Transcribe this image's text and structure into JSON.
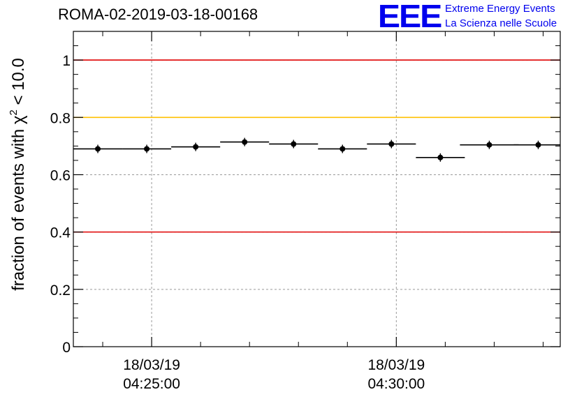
{
  "chart_data": {
    "type": "scatter",
    "title": "ROMA-02-2019-03-18-00168",
    "ylabel_main": "fraction of events with ",
    "ylabel_symbol": "χ",
    "ylabel_sup": "2",
    "ylabel_tail": " < 10.0",
    "xlabel": "",
    "ylim": [
      0,
      1.1
    ],
    "yticks": [
      {
        "value": 0,
        "label": "0"
      },
      {
        "value": 0.2,
        "label": "0.2"
      },
      {
        "value": 0.4,
        "label": "0.4"
      },
      {
        "value": 0.6,
        "label": "0.6"
      },
      {
        "value": 0.8,
        "label": "0.8"
      },
      {
        "value": 1.0,
        "label": "1"
      }
    ],
    "xlim_minutes": [
      3.4,
      13.35
    ],
    "xticks": [
      {
        "minute": 5,
        "date": "18/03/19",
        "time": "04:25:00"
      },
      {
        "minute": 10,
        "date": "18/03/19",
        "time": "04:30:00"
      }
    ],
    "x_minor_ticks_minutes": [
      4,
      6,
      7,
      8,
      9,
      11,
      12,
      13
    ],
    "reference_lines": [
      {
        "value": 1.0,
        "color": "#e00000",
        "name": "upper-limit-line"
      },
      {
        "value": 0.8,
        "color": "#ffc000",
        "name": "warning-line"
      },
      {
        "value": 0.4,
        "color": "#e00000",
        "name": "lower-limit-line"
      }
    ],
    "points": [
      {
        "x": 3.9,
        "xerr": 0.5,
        "y": 0.69
      },
      {
        "x": 4.9,
        "xerr": 0.5,
        "y": 0.69
      },
      {
        "x": 5.9,
        "xerr": 0.5,
        "y": 0.697
      },
      {
        "x": 6.9,
        "xerr": 0.5,
        "y": 0.714
      },
      {
        "x": 7.9,
        "xerr": 0.5,
        "y": 0.707
      },
      {
        "x": 8.9,
        "xerr": 0.5,
        "y": 0.69
      },
      {
        "x": 9.9,
        "xerr": 0.5,
        "y": 0.707
      },
      {
        "x": 10.9,
        "xerr": 0.5,
        "y": 0.66
      },
      {
        "x": 11.9,
        "xerr": 0.6,
        "y": 0.704
      },
      {
        "x": 12.9,
        "xerr": 0.5,
        "y": 0.704
      }
    ],
    "marker_color": "#000000"
  },
  "logo": {
    "text": "EEE",
    "line1": "Extreme Energy Events",
    "line2": "La Scienza nelle Scuole",
    "color": "#0000ee"
  }
}
